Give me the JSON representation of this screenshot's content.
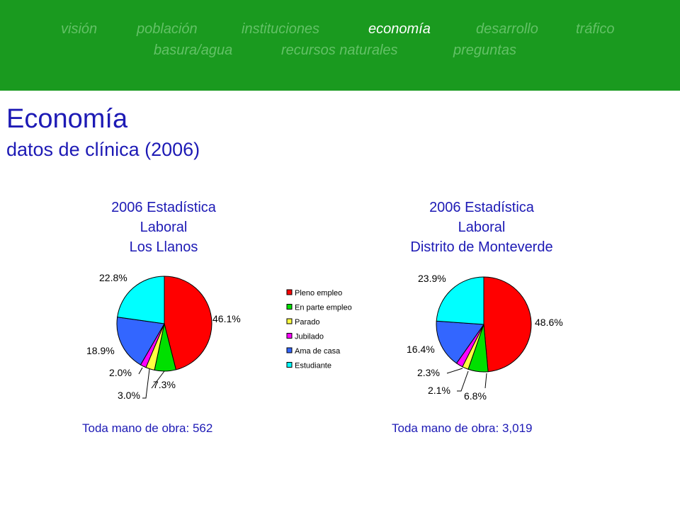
{
  "nav": {
    "items": [
      {
        "label": "visión",
        "active": false
      },
      {
        "label": "población",
        "active": false
      },
      {
        "label": "instituciones",
        "active": false
      },
      {
        "label": "economía",
        "active": true
      },
      {
        "label": "desarrollo",
        "active": false
      },
      {
        "label": "tráfico",
        "active": false
      },
      {
        "label": "basura/agua",
        "active": false
      },
      {
        "label": "recursos naturales",
        "active": false
      },
      {
        "label": "preguntas",
        "active": false
      }
    ]
  },
  "header": {
    "title": "Economía",
    "subtitle": "datos de clínica (2006)"
  },
  "colors": {
    "nav_bg": "#1a9a1f",
    "nav_text": "#63c166",
    "nav_active": "#ffffff",
    "heading": "#1d1ab5"
  },
  "chart_data": [
    {
      "type": "pie",
      "title": [
        "2006 Estadística",
        "Laboral",
        "Los Llanos"
      ],
      "categories": [
        "Pleno empleo",
        "En parte empleo",
        "Parado",
        "Jubilado",
        "Ama de casa",
        "Estudiante"
      ],
      "values": [
        46.1,
        7.3,
        3.0,
        2.0,
        18.9,
        22.8
      ],
      "labels": [
        "46.1%",
        "7.3%",
        "3.0%",
        "2.0%",
        "18.9%",
        "22.8%"
      ],
      "colors": [
        "#ff0000",
        "#00e000",
        "#ffff40",
        "#ff00ff",
        "#3366ff",
        "#00ffff"
      ],
      "total_label": "Toda mano de obra:  562"
    },
    {
      "type": "pie",
      "title": [
        "2006 Estadística",
        "Laboral",
        "Distrito de Monteverde"
      ],
      "categories": [
        "Pleno empleo",
        "En parte empleo",
        "Parado",
        "Jubilado",
        "Ama de casa",
        "Estudiante"
      ],
      "values": [
        48.6,
        6.8,
        2.1,
        2.3,
        16.4,
        23.9
      ],
      "labels": [
        "48.6%",
        "6.8%",
        "2.1%",
        "2.3%",
        "16.4%",
        "23.9%"
      ],
      "colors": [
        "#ff0000",
        "#00e000",
        "#ffff40",
        "#ff00ff",
        "#3366ff",
        "#00ffff"
      ],
      "total_label": "Toda mano de obra:  3,019"
    }
  ],
  "legend": {
    "placement": "between charts",
    "items": [
      "Pleno empleo",
      "En parte empleo",
      "Parado",
      "Jubilado",
      "Ama de casa",
      "Estudiante"
    ]
  }
}
